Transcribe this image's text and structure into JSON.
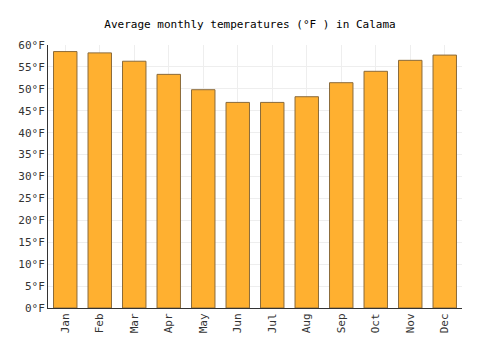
{
  "chart_data": {
    "type": "bar",
    "title": "Average monthly temperatures (°F ) in Calama",
    "categories": [
      "Jan",
      "Feb",
      "Mar",
      "Apr",
      "May",
      "Jun",
      "Jul",
      "Aug",
      "Sep",
      "Oct",
      "Nov",
      "Dec"
    ],
    "values": [
      58.5,
      58.2,
      56.3,
      53.3,
      49.8,
      46.9,
      46.9,
      48.2,
      51.4,
      54.0,
      56.5,
      57.7
    ],
    "color": "#ffb030",
    "ylim": [
      0,
      60
    ],
    "yticks": [
      {
        "value": 0,
        "label": "0°F"
      },
      {
        "value": 5,
        "label": "5°F"
      },
      {
        "value": 10,
        "label": "10°F"
      },
      {
        "value": 15,
        "label": "15°F"
      },
      {
        "value": 20,
        "label": "20°F"
      },
      {
        "value": 25,
        "label": "25°F"
      },
      {
        "value": 30,
        "label": "30°F"
      },
      {
        "value": 35,
        "label": "35°F"
      },
      {
        "value": 40,
        "label": "40°F"
      },
      {
        "value": 45,
        "label": "45°F"
      },
      {
        "value": 50,
        "label": "50°F"
      },
      {
        "value": 55,
        "label": "55°F"
      },
      {
        "value": 60,
        "label": "60°F"
      }
    ],
    "grid": true
  }
}
